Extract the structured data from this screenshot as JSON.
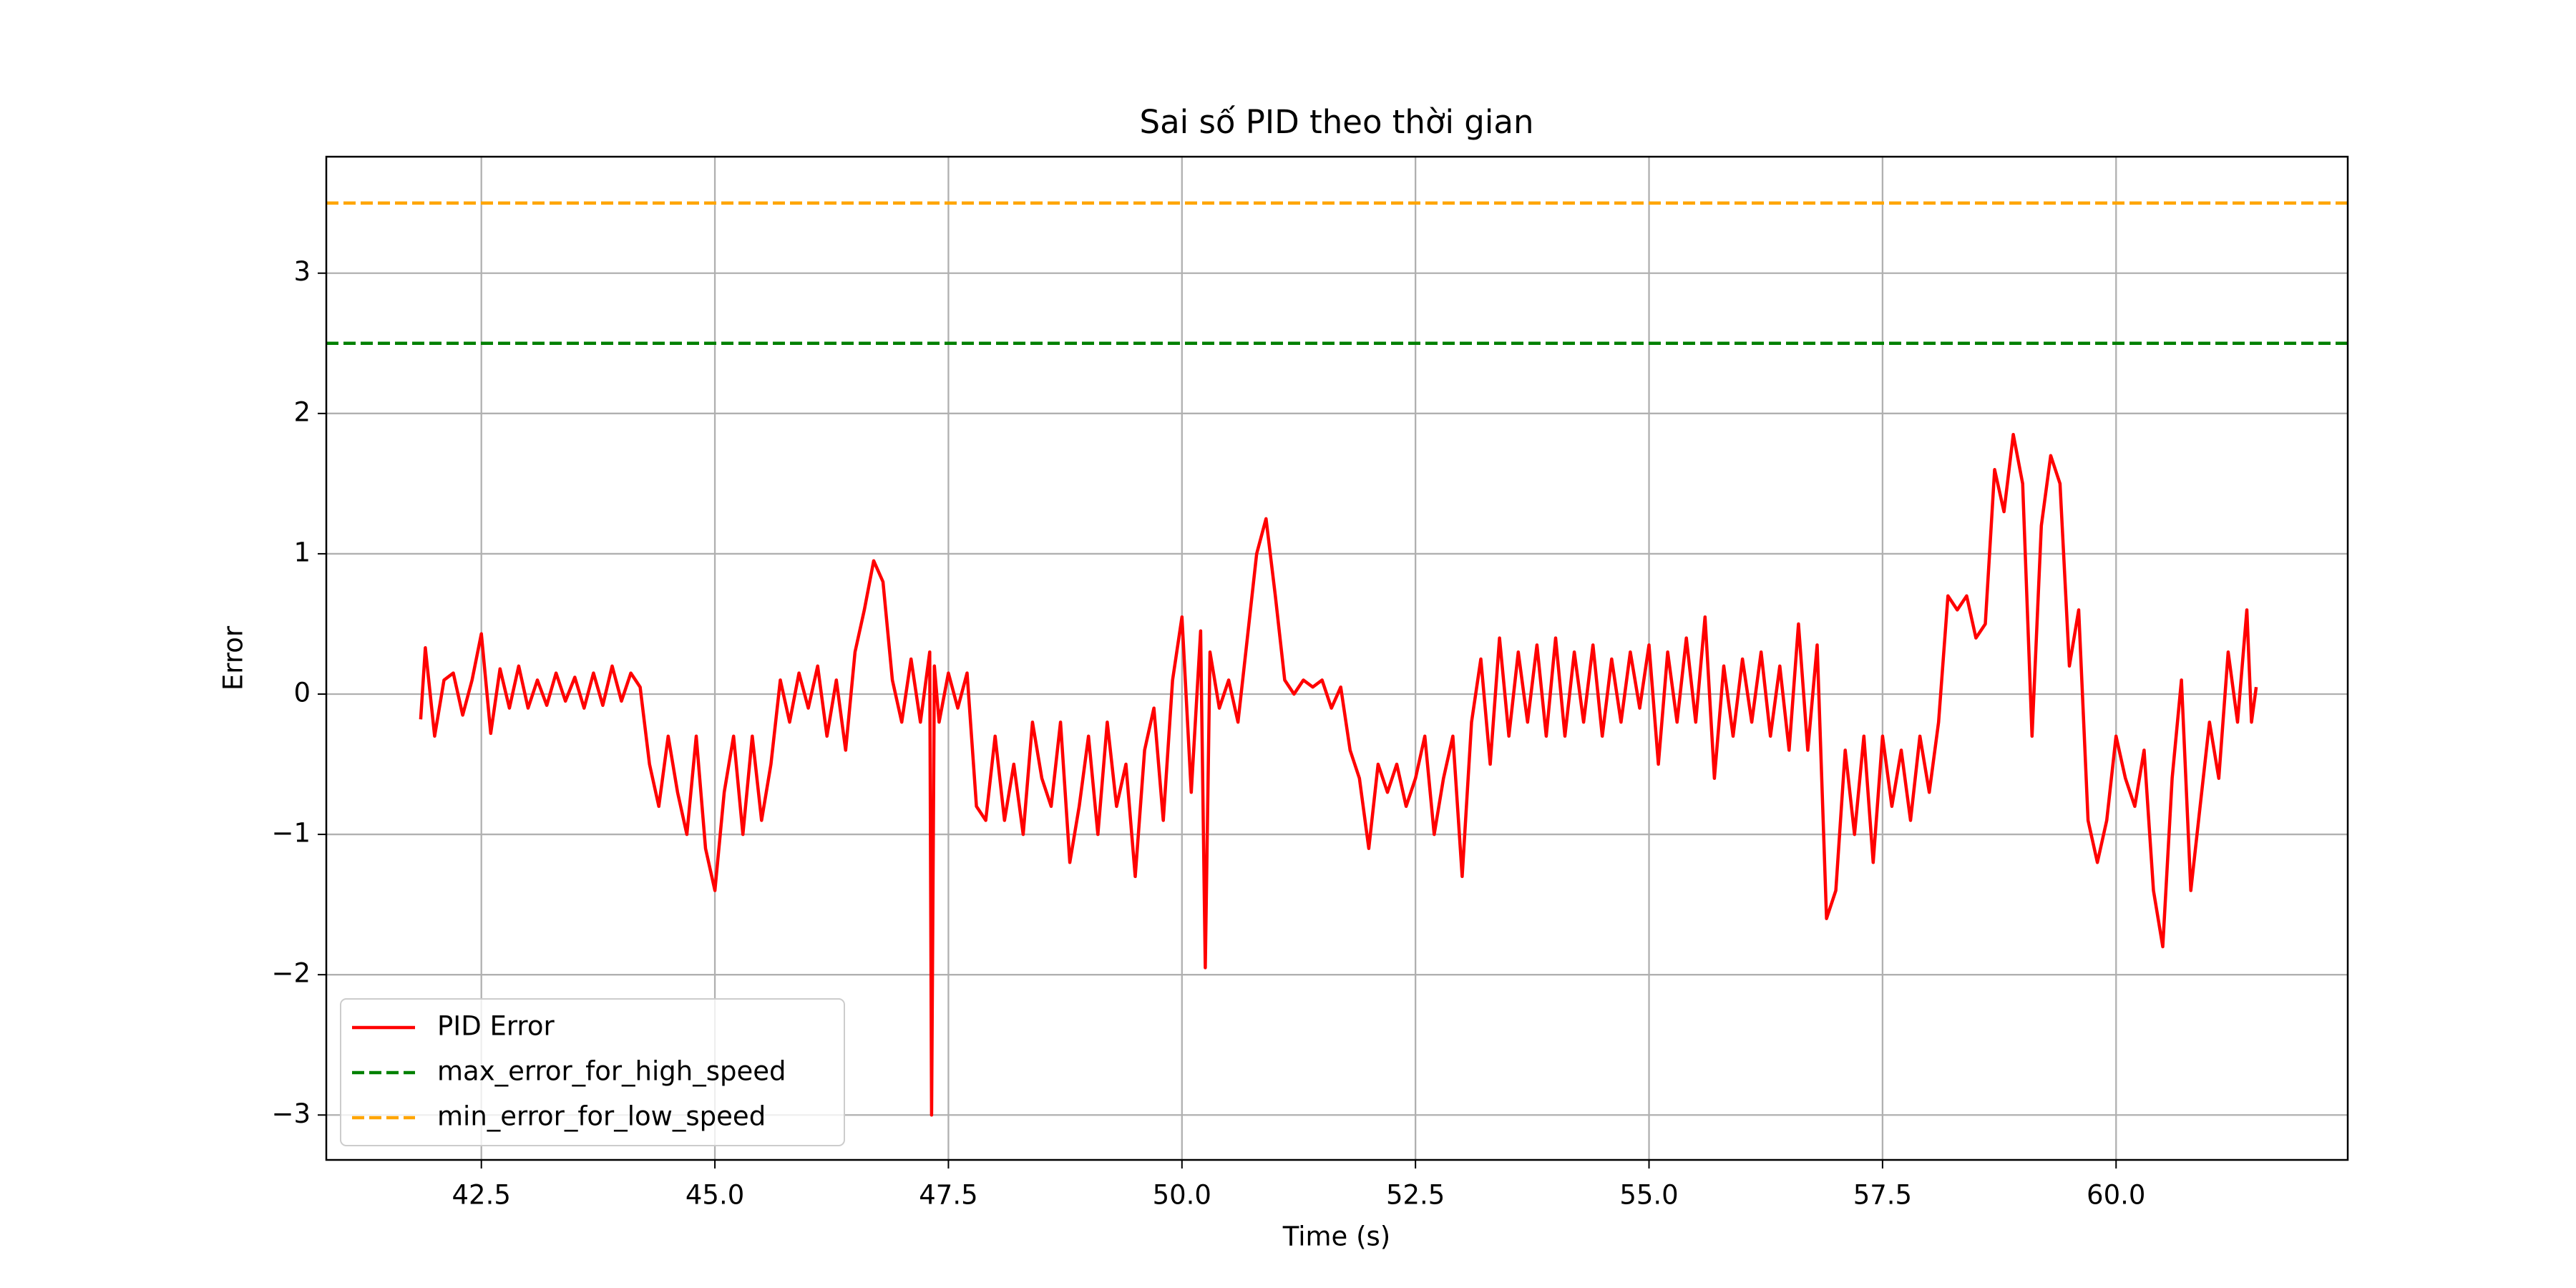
{
  "chart_data": {
    "type": "line",
    "title": "Sai số PID theo thời gian",
    "xlabel": "Time (s)",
    "ylabel": "Error",
    "x": [
      41.85,
      41.9,
      42.0,
      42.1,
      42.2,
      42.3,
      42.4,
      42.5,
      42.6,
      42.7,
      42.8,
      42.9,
      43.0,
      43.1,
      43.2,
      43.3,
      43.4,
      43.5,
      43.6,
      43.7,
      43.8,
      43.9,
      44.0,
      44.1,
      44.2,
      44.3,
      44.4,
      44.5,
      44.6,
      44.7,
      44.8,
      44.9,
      45.0,
      45.1,
      45.2,
      45.3,
      45.4,
      45.5,
      45.6,
      45.7,
      45.8,
      45.9,
      46.0,
      46.1,
      46.2,
      46.3,
      46.4,
      46.5,
      46.6,
      46.7,
      46.8,
      46.9,
      47.0,
      47.1,
      47.2,
      47.3,
      47.32,
      47.35,
      47.4,
      47.5,
      47.6,
      47.7,
      47.8,
      47.9,
      48.0,
      48.1,
      48.2,
      48.3,
      48.4,
      48.5,
      48.6,
      48.7,
      48.8,
      48.9,
      49.0,
      49.1,
      49.2,
      49.3,
      49.4,
      49.5,
      49.6,
      49.7,
      49.8,
      49.9,
      50.0,
      50.1,
      50.2,
      50.25,
      50.3,
      50.4,
      50.5,
      50.6,
      50.7,
      50.8,
      50.9,
      51.0,
      51.1,
      51.2,
      51.3,
      51.4,
      51.5,
      51.6,
      51.7,
      51.8,
      51.9,
      52.0,
      52.1,
      52.2,
      52.3,
      52.4,
      52.5,
      52.6,
      52.7,
      52.8,
      52.9,
      53.0,
      53.1,
      53.2,
      53.3,
      53.4,
      53.5,
      53.6,
      53.7,
      53.8,
      53.9,
      54.0,
      54.1,
      54.2,
      54.3,
      54.4,
      54.5,
      54.6,
      54.7,
      54.8,
      54.9,
      55.0,
      55.1,
      55.2,
      55.3,
      55.4,
      55.5,
      55.6,
      55.7,
      55.8,
      55.9,
      56.0,
      56.1,
      56.2,
      56.3,
      56.4,
      56.5,
      56.6,
      56.7,
      56.8,
      56.9,
      57.0,
      57.1,
      57.2,
      57.3,
      57.4,
      57.5,
      57.6,
      57.7,
      57.8,
      57.9,
      58.0,
      58.1,
      58.2,
      58.3,
      58.4,
      58.5,
      58.6,
      58.7,
      58.8,
      58.9,
      59.0,
      59.1,
      59.2,
      59.3,
      59.4,
      59.5,
      59.6,
      59.7,
      59.8,
      59.9,
      60.0,
      60.1,
      60.2,
      60.3,
      60.4,
      60.5,
      60.6,
      60.7,
      60.8,
      60.9,
      61.0,
      61.1,
      61.2,
      61.3,
      61.4,
      61.45,
      61.5
    ],
    "series": [
      {
        "name": "PID Error",
        "color": "#ff0000",
        "values": [
          -0.18,
          0.33,
          -0.3,
          0.1,
          0.15,
          -0.15,
          0.1,
          0.43,
          -0.28,
          0.18,
          -0.1,
          0.2,
          -0.1,
          0.1,
          -0.08,
          0.15,
          -0.05,
          0.12,
          -0.1,
          0.15,
          -0.08,
          0.2,
          -0.05,
          0.15,
          0.05,
          -0.5,
          -0.8,
          -0.3,
          -0.7,
          -1.0,
          -0.3,
          -1.1,
          -1.4,
          -0.7,
          -0.3,
          -1.0,
          -0.3,
          -0.9,
          -0.5,
          0.1,
          -0.2,
          0.15,
          -0.1,
          0.2,
          -0.3,
          0.1,
          -0.4,
          0.3,
          0.6,
          0.95,
          0.8,
          0.1,
          -0.2,
          0.25,
          -0.2,
          0.3,
          -3.0,
          0.2,
          -0.2,
          0.15,
          -0.1,
          0.15,
          -0.8,
          -0.9,
          -0.3,
          -0.9,
          -0.5,
          -1.0,
          -0.2,
          -0.6,
          -0.8,
          -0.2,
          -1.2,
          -0.8,
          -0.3,
          -1.0,
          -0.2,
          -0.8,
          -0.5,
          -1.3,
          -0.4,
          -0.1,
          -0.9,
          0.1,
          0.55,
          -0.7,
          0.45,
          -1.95,
          0.3,
          -0.1,
          0.1,
          -0.2,
          0.4,
          1.0,
          1.25,
          0.7,
          0.1,
          0.0,
          0.1,
          0.05,
          0.1,
          -0.1,
          0.05,
          -0.4,
          -0.6,
          -1.1,
          -0.5,
          -0.7,
          -0.5,
          -0.8,
          -0.6,
          -0.3,
          -1.0,
          -0.6,
          -0.3,
          -1.3,
          -0.2,
          0.25,
          -0.5,
          0.4,
          -0.3,
          0.3,
          -0.2,
          0.35,
          -0.3,
          0.4,
          -0.3,
          0.3,
          -0.2,
          0.35,
          -0.3,
          0.25,
          -0.2,
          0.3,
          -0.1,
          0.35,
          -0.5,
          0.3,
          -0.2,
          0.4,
          -0.2,
          0.55,
          -0.6,
          0.2,
          -0.3,
          0.25,
          -0.2,
          0.3,
          -0.3,
          0.2,
          -0.4,
          0.5,
          -0.4,
          0.35,
          -1.6,
          -1.4,
          -0.4,
          -1.0,
          -0.3,
          -1.2,
          -0.3,
          -0.8,
          -0.4,
          -0.9,
          -0.3,
          -0.7,
          -0.2,
          0.7,
          0.6,
          0.7,
          0.4,
          0.5,
          1.6,
          1.3,
          1.85,
          1.5,
          -0.3,
          1.2,
          1.7,
          1.5,
          0.2,
          0.6,
          -0.9,
          -1.2,
          -0.9,
          -0.3,
          -0.6,
          -0.8,
          -0.4,
          -1.4,
          -1.8,
          -0.6,
          0.1,
          -1.4,
          -0.8,
          -0.2,
          -0.6,
          0.3,
          -0.2,
          0.6,
          -0.2,
          0.05
        ]
      }
    ],
    "hlines": [
      {
        "name": "max_error_for_high_speed",
        "color": "#008000",
        "value": 2.5,
        "style": "dashed"
      },
      {
        "name": "min_error_for_low_speed",
        "color": "#ffa500",
        "value": 3.5,
        "style": "dashed"
      }
    ],
    "xlim": [
      40.84,
      62.48
    ],
    "ylim": [
      -3.32,
      3.83
    ],
    "xticks": [
      42.5,
      {
        "value": 45,
        "label": "45.0"
      },
      47.5,
      {
        "value": 50,
        "label": "50.0"
      },
      52.5,
      {
        "value": 55,
        "label": "55.0"
      },
      57.5,
      {
        "value": 60,
        "label": "60.0"
      }
    ],
    "yticks": [
      {
        "value": -3,
        "label": "−3"
      },
      {
        "value": -2,
        "label": "−2"
      },
      {
        "value": -1,
        "label": "−1"
      },
      0,
      1,
      2,
      3
    ],
    "grid": true,
    "legend": "lower left"
  }
}
